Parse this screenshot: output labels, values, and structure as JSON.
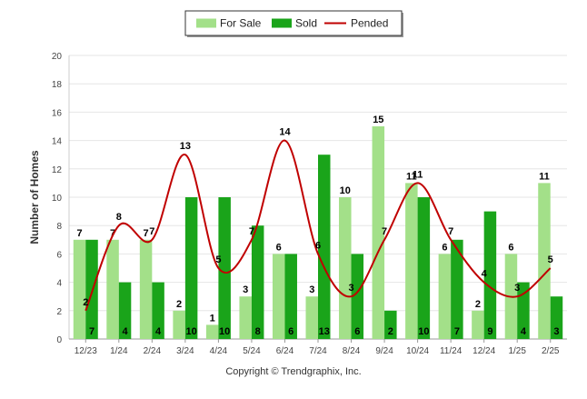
{
  "chart_data": {
    "type": "bar",
    "ylabel": "Number of Homes",
    "xlabel": "",
    "ylim": [
      0,
      20
    ],
    "yticks": [
      0,
      2,
      4,
      6,
      8,
      10,
      12,
      14,
      16,
      18,
      20
    ],
    "grid": true,
    "legend_position": "top",
    "categories": [
      "12/23",
      "1/24",
      "2/24",
      "3/24",
      "4/24",
      "5/24",
      "6/24",
      "7/24",
      "8/24",
      "9/24",
      "10/24",
      "11/24",
      "12/24",
      "1/25",
      "2/25"
    ],
    "series": [
      {
        "name": "For Sale",
        "type": "bar",
        "color": "#a3e089",
        "values": [
          7,
          7,
          7,
          2,
          1,
          3,
          6,
          3,
          10,
          15,
          11,
          6,
          2,
          6,
          11
        ]
      },
      {
        "name": "Sold",
        "type": "bar",
        "color": "#1aa41a",
        "values": [
          7,
          4,
          4,
          10,
          10,
          8,
          6,
          13,
          6,
          2,
          10,
          7,
          9,
          4,
          3
        ]
      },
      {
        "name": "Pended",
        "type": "line",
        "color": "#c00000",
        "values": [
          2,
          8,
          7,
          13,
          5,
          7,
          14,
          6,
          3,
          7,
          11,
          7,
          4,
          3,
          5
        ]
      }
    ]
  },
  "footer": {
    "copyright": "Copyright © Trendgraphix, Inc."
  }
}
